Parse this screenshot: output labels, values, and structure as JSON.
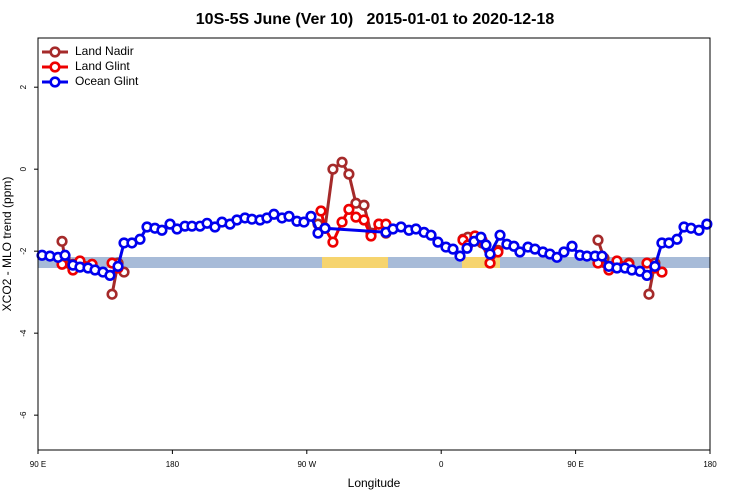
{
  "chart_data": {
    "type": "line",
    "title": "10S-5S June (Ver 10)   2015-01-01 to 2020-12-18",
    "x_label": "Longitude",
    "y_label": "XCO2 - MLO trend (ppm)",
    "xlim": [
      90,
      540
    ],
    "xticks": [
      {
        "value": 90,
        "label": "90 E"
      },
      180,
      {
        "value": 270,
        "label": "90 W"
      },
      {
        "value": 360,
        "label": "0"
      },
      {
        "value": 450,
        "label": "90 E"
      },
      {
        "value": 540,
        "label": "180"
      }
    ],
    "ylim": [
      -6.85,
      3.2
    ],
    "yticks": [
      -6,
      -4,
      -2,
      0,
      2
    ],
    "legend": "top-left",
    "series": [
      {
        "name": "Land Nadir",
        "color": "#a52a2a",
        "x": [
          106.1,
          108.1,
          113.4,
          118.1,
          126.2,
          null,
          139.6,
          143.6,
          147.6,
          null,
          277.5,
          282.2,
          287.5,
          293.6,
          298.2,
          302.9,
          308.3,
          313.0,
          318.3,
          323.0,
          null,
          374.6,
          377.9,
          382.6,
          387.3,
          392.7,
          398.0,
          null,
          465.0,
          469.0,
          472.3,
          477.7,
          485.7,
          null,
          499.1,
          503.1,
          507.8
        ],
        "values": [
          -1.76,
          -2.17,
          -2.32,
          -2.29,
          -2.32,
          null,
          -3.05,
          -2.29,
          -2.51,
          null,
          -1.34,
          -1.44,
          0.0,
          0.17,
          -0.12,
          -0.83,
          -0.88,
          -1.56,
          -1.34,
          -1.56,
          null,
          -1.71,
          -1.66,
          -1.68,
          -1.8,
          -2.29,
          -1.98,
          null,
          -1.73,
          -2.17,
          -2.41,
          -2.32,
          -2.29,
          null,
          -3.05,
          -2.29,
          -2.51
        ]
      },
      {
        "name": "Land Glint",
        "color": "#ee0000",
        "x": [
          106.1,
          113.4,
          118.1,
          126.2,
          null,
          139.6,
          143.6,
          null,
          279.5,
          282.2,
          287.5,
          293.6,
          298.2,
          302.9,
          308.3,
          313.0,
          318.3,
          323.0,
          null,
          374.6,
          377.9,
          382.6,
          387.3,
          392.7,
          398.0,
          null,
          465.0,
          472.3,
          477.7,
          485.7,
          null,
          497.8,
          503.1,
          507.8
        ],
        "values": [
          -2.32,
          -2.46,
          -2.24,
          -2.32,
          null,
          -2.29,
          -2.41,
          null,
          -1.02,
          -1.44,
          -1.78,
          -1.29,
          -0.98,
          -1.17,
          -1.24,
          -1.63,
          -1.34,
          -1.34,
          null,
          -1.73,
          -1.85,
          -1.63,
          -1.73,
          -2.29,
          -2.02,
          null,
          -2.29,
          -2.46,
          -2.24,
          -2.32,
          null,
          -2.29,
          -2.41,
          -2.51
        ]
      },
      {
        "name": "Ocean Glint",
        "color": "#0000ee",
        "x": [
          92.7,
          98.0,
          103.4,
          108.1,
          113.4,
          118.1,
          123.5,
          128.2,
          133.5,
          138.2,
          143.6,
          147.6,
          152.9,
          158.3,
          163.0,
          168.3,
          173.0,
          178.4,
          183.1,
          188.4,
          193.1,
          198.5,
          203.2,
          208.5,
          213.2,
          218.6,
          223.2,
          228.6,
          233.3,
          238.7,
          243.3,
          248.0,
          253.4,
          258.1,
          263.4,
          268.1,
          272.8,
          277.5,
          282.2,
          323.0,
          327.7,
          333.1,
          338.4,
          343.1,
          348.5,
          353.2,
          357.8,
          363.2,
          367.9,
          372.6,
          377.3,
          382.0,
          386.6,
          390.0,
          392.7,
          399.4,
          404.0,
          408.7,
          412.7,
          418.1,
          422.8,
          428.1,
          432.8,
          437.5,
          442.2,
          447.6,
          452.9,
          457.6,
          463.0,
          467.7,
          472.3,
          477.7,
          483.1,
          487.7,
          493.1,
          497.8,
          503.1,
          507.8,
          512.5,
          517.9,
          522.6,
          527.3,
          532.6,
          537.9
        ],
        "values": [
          -2.1,
          -2.12,
          -2.15,
          -2.1,
          -2.34,
          -2.39,
          -2.41,
          -2.46,
          -2.51,
          -2.59,
          -2.37,
          -1.8,
          -1.8,
          -1.71,
          -1.41,
          -1.44,
          -1.49,
          -1.34,
          -1.46,
          -1.39,
          -1.39,
          -1.39,
          -1.32,
          -1.41,
          -1.29,
          -1.34,
          -1.24,
          -1.19,
          -1.22,
          -1.24,
          -1.19,
          -1.1,
          -1.19,
          -1.15,
          -1.27,
          -1.29,
          -1.15,
          -1.56,
          -1.44,
          -1.54,
          -1.46,
          -1.41,
          -1.49,
          -1.46,
          -1.54,
          -1.61,
          -1.78,
          -1.9,
          -1.95,
          -2.12,
          -1.93,
          -1.76,
          -1.66,
          -1.85,
          -2.07,
          -1.61,
          -1.83,
          -1.88,
          -2.02,
          -1.9,
          -1.95,
          -2.02,
          -2.07,
          -2.15,
          -2.02,
          -1.88,
          -2.1,
          -2.12,
          -2.12,
          -2.12,
          -2.37,
          -2.41,
          -2.41,
          -2.46,
          -2.49,
          -2.59,
          -2.37,
          -1.8,
          -1.8,
          -1.71,
          -1.41,
          -1.44,
          -1.49,
          -1.34
        ]
      }
    ]
  }
}
